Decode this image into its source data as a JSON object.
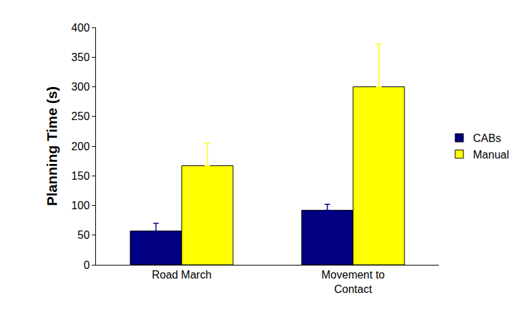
{
  "chart_data": {
    "type": "bar",
    "y_label": "Planning Time (s)",
    "categories": [
      "Road March",
      "Movement to Contact"
    ],
    "series": [
      {
        "name": "CABs",
        "color": "#000080",
        "values": [
          57,
          92
        ],
        "errors": [
          13,
          10
        ]
      },
      {
        "name": "Manual",
        "color": "#ffff00",
        "values": [
          167,
          300
        ],
        "errors": [
          38,
          72
        ]
      }
    ],
    "ylim": [
      0,
      400
    ],
    "yticks": [
      0,
      50,
      100,
      150,
      200,
      250,
      300,
      350,
      400
    ],
    "grid": false,
    "legend": "right"
  }
}
